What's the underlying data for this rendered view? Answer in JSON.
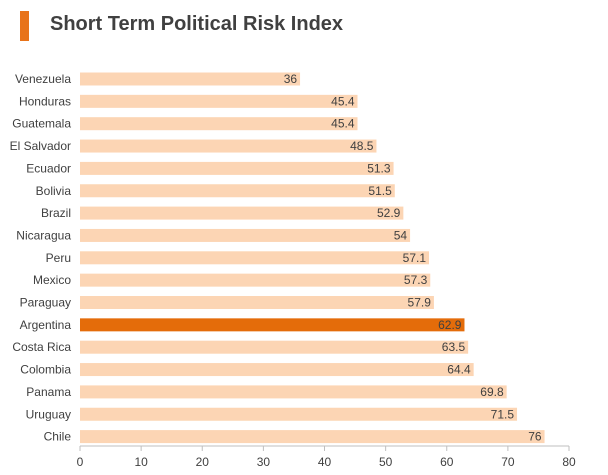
{
  "chart_data": {
    "type": "bar",
    "orientation": "horizontal",
    "title": "Short Term Political Risk Index",
    "categories": [
      "Venezuela",
      "Honduras",
      "Guatemala",
      "El Salvador",
      "Ecuador",
      "Bolivia",
      "Brazil",
      "Nicaragua",
      "Peru",
      "Mexico",
      "Paraguay",
      "Argentina",
      "Costa Rica",
      "Colombia",
      "Panama",
      "Uruguay",
      "Chile"
    ],
    "values": [
      36,
      45.4,
      45.4,
      48.5,
      51.3,
      51.5,
      52.9,
      54,
      57.1,
      57.3,
      57.9,
      62.9,
      63.5,
      64.4,
      69.8,
      71.5,
      76
    ],
    "value_labels": [
      "36",
      "45.4",
      "45.4",
      "48.5",
      "51.3",
      "51.5",
      "52.9",
      "54",
      "57.1",
      "57.3",
      "57.9",
      "62.9",
      "63.5",
      "64.4",
      "69.8",
      "71.5",
      "76"
    ],
    "highlight": "Argentina",
    "xlim": [
      0,
      80
    ],
    "xticks": [
      "0",
      "10",
      "20",
      "30",
      "40",
      "50",
      "60",
      "70",
      "80"
    ],
    "xlabel": "",
    "ylabel": "",
    "grid": false,
    "legend": "none"
  },
  "colors": {
    "accent": "#e8731a",
    "bar": "#fcd5b4",
    "highlight": "#e46c0a"
  }
}
